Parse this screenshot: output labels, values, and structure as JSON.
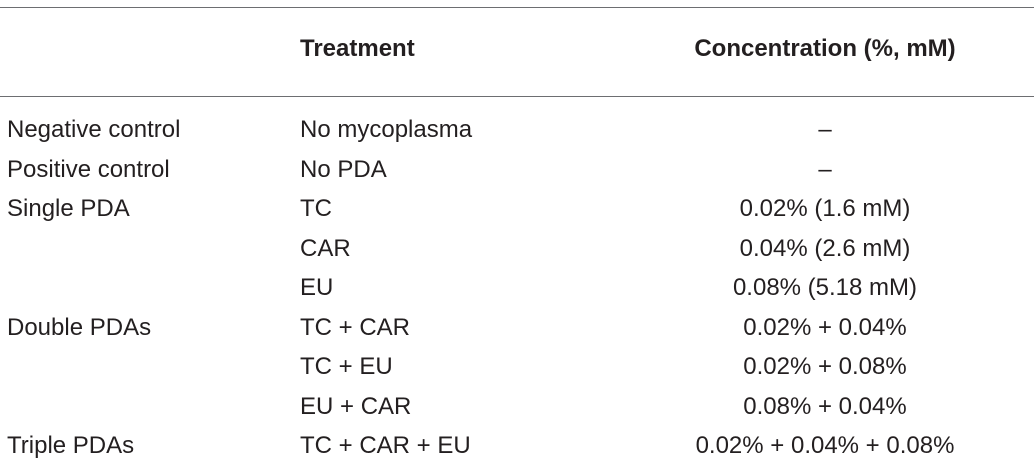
{
  "table": {
    "headers": {
      "group": "",
      "treatment": "Treatment",
      "concentration": "Concentration (%, mM)"
    },
    "rows": [
      {
        "group": "Negative control",
        "treatment": "No mycoplasma",
        "concentration": "–"
      },
      {
        "group": "Positive control",
        "treatment": "No PDA",
        "concentration": "–"
      },
      {
        "group": "Single PDA",
        "treatment": "TC",
        "concentration": "0.02% (1.6 mM)"
      },
      {
        "group": "",
        "treatment": "CAR",
        "concentration": "0.04% (2.6 mM)"
      },
      {
        "group": "",
        "treatment": "EU",
        "concentration": "0.08% (5.18 mM)"
      },
      {
        "group": "Double PDAs",
        "treatment": "TC + CAR",
        "concentration": "0.02% + 0.04%"
      },
      {
        "group": "",
        "treatment": "TC + EU",
        "concentration": "0.02% + 0.08%"
      },
      {
        "group": "",
        "treatment": "EU + CAR",
        "concentration": "0.08% + 0.04%"
      },
      {
        "group": "Triple PDAs",
        "treatment": "TC + CAR + EU",
        "concentration": "0.02% + 0.04% + 0.08%"
      }
    ]
  }
}
